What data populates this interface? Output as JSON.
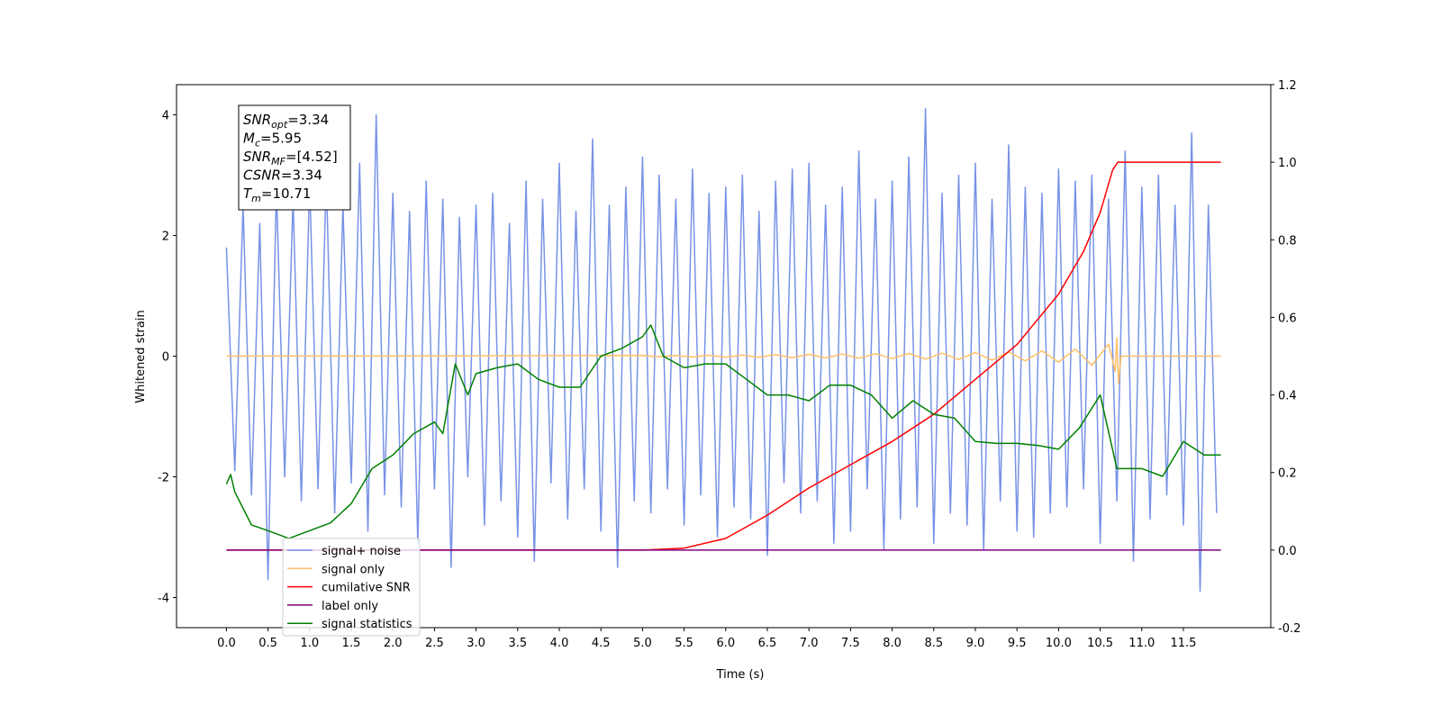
{
  "chart_data": {
    "type": "line",
    "xlabel": "Time (s)",
    "ylabel": "Whitened strain",
    "xlim": [
      -0.6,
      12.55
    ],
    "ylim": [
      -4.5,
      4.5
    ],
    "y2lim": [
      -0.2,
      1.2
    ],
    "xticks": [
      {
        "value": 0,
        "label": "0.0"
      },
      0.5,
      {
        "value": 1,
        "label": "1.0"
      },
      1.5,
      {
        "value": 2,
        "label": "2.0"
      },
      2.5,
      {
        "value": 3,
        "label": "3.0"
      },
      3.5,
      {
        "value": 4,
        "label": "4.0"
      },
      4.5,
      {
        "value": 5,
        "label": "5.0"
      },
      5.5,
      {
        "value": 6,
        "label": "6.0"
      },
      6.5,
      {
        "value": 7,
        "label": "7.0"
      },
      7.5,
      {
        "value": 8,
        "label": "8.0"
      },
      8.5,
      {
        "value": 9,
        "label": "9.0"
      },
      9.5,
      {
        "value": 10,
        "label": "10.0"
      },
      10.5,
      {
        "value": 11,
        "label": "11.0"
      },
      11.5
    ],
    "yticks": [
      -4,
      -2,
      0,
      2,
      4
    ],
    "y2ticks": [
      -0.2,
      {
        "value": 0,
        "label": "0.0"
      },
      0.2,
      0.4,
      0.6,
      0.8,
      {
        "value": 1,
        "label": "1.0"
      },
      1.2
    ],
    "legend": "lower left",
    "annotation": [
      {
        "symbol": "SNR",
        "subscript": "opt",
        "text": "=3.34"
      },
      {
        "symbol": "M",
        "subscript": "c",
        "text": "=5.95"
      },
      {
        "symbol": "SNR",
        "subscript": "MF",
        "text": "=[4.52]"
      },
      {
        "symbol": "CSNR",
        "text": "=3.34"
      },
      {
        "symbol": "T",
        "subscript": "m",
        "text": "=10.71"
      }
    ],
    "series": [
      {
        "name": "signal+ noise",
        "color": "#7892e6",
        "axis": "y",
        "x": [
          0,
          0.1,
          0.2,
          0.3,
          0.4,
          0.5,
          0.6,
          0.7,
          0.8,
          0.9,
          1,
          1.1,
          1.2,
          1.3,
          1.4,
          1.5,
          1.6,
          1.7,
          1.8,
          1.9,
          2,
          2.1,
          2.2,
          2.3,
          2.4,
          2.5,
          2.6,
          2.7,
          2.8,
          2.9,
          3,
          3.1,
          3.2,
          3.3,
          3.4,
          3.5,
          3.6,
          3.7,
          3.8,
          3.9,
          4,
          4.1,
          4.2,
          4.3,
          4.4,
          4.5,
          4.6,
          4.7,
          4.8,
          4.9,
          5,
          5.1,
          5.2,
          5.3,
          5.4,
          5.5,
          5.6,
          5.7,
          5.8,
          5.9,
          6,
          6.1,
          6.2,
          6.3,
          6.4,
          6.5,
          6.6,
          6.7,
          6.8,
          6.9,
          7,
          7.1,
          7.2,
          7.3,
          7.4,
          7.5,
          7.6,
          7.7,
          7.8,
          7.9,
          8,
          8.1,
          8.2,
          8.3,
          8.4,
          8.5,
          8.6,
          8.7,
          8.8,
          8.9,
          9,
          9.1,
          9.2,
          9.3,
          9.4,
          9.5,
          9.6,
          9.7,
          9.8,
          9.9,
          10,
          10.1,
          10.2,
          10.3,
          10.4,
          10.5,
          10.6,
          10.7,
          10.8,
          10.9,
          11,
          11.1,
          11.2,
          11.3,
          11.4,
          11.5,
          11.6,
          11.7,
          11.8,
          11.9
        ],
        "values": [
          1.8,
          -1.9,
          2.5,
          -2.3,
          2.2,
          -3.7,
          2.8,
          -2.0,
          2.6,
          -2.4,
          2.9,
          -2.2,
          3.0,
          -2.6,
          2.5,
          -2.1,
          3.2,
          -2.9,
          4.0,
          -2.3,
          2.7,
          -2.5,
          2.4,
          -3.1,
          2.9,
          -2.2,
          2.6,
          -3.5,
          2.3,
          -2.0,
          2.5,
          -2.8,
          2.7,
          -2.4,
          2.2,
          -3.0,
          2.9,
          -3.4,
          2.6,
          -2.1,
          3.2,
          -2.7,
          2.4,
          -2.2,
          3.6,
          -2.9,
          2.5,
          -3.5,
          2.8,
          -2.4,
          3.3,
          -2.6,
          3.0,
          -2.2,
          2.6,
          -2.8,
          3.1,
          -2.3,
          2.7,
          -3.0,
          2.8,
          -2.5,
          3.0,
          -2.7,
          2.4,
          -3.3,
          2.9,
          -2.1,
          3.1,
          -2.6,
          3.2,
          -2.4,
          2.5,
          -3.1,
          2.8,
          -2.9,
          3.4,
          -2.2,
          2.6,
          -3.2,
          2.9,
          -2.7,
          3.3,
          -2.5,
          4.1,
          -3.1,
          2.7,
          -2.6,
          3.0,
          -2.8,
          3.2,
          -3.2,
          2.6,
          -2.4,
          3.5,
          -2.9,
          2.8,
          -3.0,
          2.7,
          -2.6,
          3.1,
          -2.5,
          2.9,
          -2.2,
          3.0,
          -3.1,
          2.6,
          -2.4,
          3.4,
          -3.4,
          2.8,
          -2.7,
          3.0,
          -2.3,
          2.5,
          -2.8,
          3.7,
          -3.9,
          2.5,
          -2.6
        ]
      },
      {
        "name": "signal only",
        "color": "#ffbf66",
        "axis": "y",
        "x": [
          0,
          5.0,
          5.2,
          5.4,
          5.6,
          5.8,
          6.0,
          6.2,
          6.4,
          6.6,
          6.8,
          7.0,
          7.2,
          7.4,
          7.6,
          7.8,
          8.0,
          8.2,
          8.4,
          8.6,
          8.8,
          9.0,
          9.2,
          9.4,
          9.6,
          9.8,
          10.0,
          10.2,
          10.4,
          10.6,
          10.68,
          10.7,
          10.72,
          10.75,
          11.95
        ],
        "values": [
          0,
          0.01,
          -0.01,
          0.01,
          -0.015,
          0.015,
          -0.02,
          0.02,
          -0.02,
          0.025,
          -0.025,
          0.03,
          -0.03,
          0.035,
          -0.035,
          0.04,
          -0.04,
          0.045,
          -0.05,
          0.05,
          -0.055,
          0.06,
          -0.065,
          0.07,
          -0.08,
          0.09,
          -0.1,
          0.12,
          -0.15,
          0.2,
          -0.25,
          0.3,
          -0.45,
          0,
          0
        ]
      },
      {
        "name": "cumilative SNR",
        "color": "#ff0000",
        "axis": "y2",
        "x": [
          0,
          5.0,
          5.5,
          6.0,
          6.5,
          7.0,
          7.5,
          8.0,
          8.5,
          9.0,
          9.5,
          10.0,
          10.3,
          10.5,
          10.65,
          10.71,
          11.95
        ],
        "values": [
          0,
          0,
          0.005,
          0.03,
          0.09,
          0.16,
          0.22,
          0.28,
          0.35,
          0.44,
          0.53,
          0.66,
          0.77,
          0.87,
          0.98,
          1.0,
          1.0
        ]
      },
      {
        "name": "label only",
        "color": "#800080",
        "axis": "y2",
        "x": [
          0,
          11.95
        ],
        "values": [
          0,
          0
        ]
      },
      {
        "name": "signal statistics",
        "color": "#008000",
        "axis": "y2",
        "x": [
          0,
          0.05,
          0.1,
          0.3,
          0.5,
          0.75,
          1.0,
          1.25,
          1.5,
          1.75,
          2.0,
          2.25,
          2.5,
          2.6,
          2.75,
          2.9,
          3.0,
          3.25,
          3.5,
          3.75,
          4.0,
          4.25,
          4.5,
          4.75,
          5.0,
          5.1,
          5.25,
          5.5,
          5.75,
          6.0,
          6.25,
          6.5,
          6.75,
          7.0,
          7.25,
          7.5,
          7.75,
          8.0,
          8.25,
          8.5,
          8.75,
          9.0,
          9.25,
          9.5,
          9.75,
          10.0,
          10.25,
          10.5,
          10.7,
          11.0,
          11.25,
          11.5,
          11.75,
          11.95
        ],
        "values": [
          0.17,
          0.195,
          0.15,
          0.065,
          0.05,
          0.03,
          0.05,
          0.07,
          0.12,
          0.21,
          0.245,
          0.3,
          0.33,
          0.3,
          0.48,
          0.4,
          0.455,
          0.47,
          0.48,
          0.44,
          0.42,
          0.42,
          0.5,
          0.52,
          0.55,
          0.58,
          0.5,
          0.47,
          0.48,
          0.48,
          0.44,
          0.4,
          0.4,
          0.385,
          0.425,
          0.425,
          0.4,
          0.34,
          0.385,
          0.35,
          0.34,
          0.28,
          0.275,
          0.275,
          0.27,
          0.26,
          0.315,
          0.4,
          0.21,
          0.21,
          0.19,
          0.28,
          0.245,
          0.245
        ]
      }
    ]
  }
}
